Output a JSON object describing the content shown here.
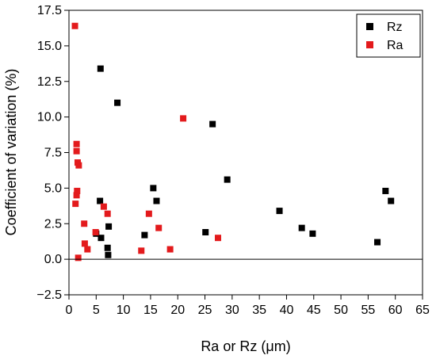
{
  "chart_data": {
    "type": "scatter",
    "xlabel": "Ra or Rz (μm)",
    "ylabel": "Coefficient of variation (%)",
    "xlim": [
      0,
      65
    ],
    "ylim": [
      -2.5,
      17.5
    ],
    "xticks": [
      0,
      5,
      10,
      15,
      20,
      25,
      30,
      35,
      40,
      45,
      50,
      55,
      60,
      65
    ],
    "yticks": [
      -2.5,
      0.0,
      2.5,
      5.0,
      7.5,
      10.0,
      12.5,
      15.0,
      17.5
    ],
    "ytick_labels": [
      "−2.5",
      "0.0",
      "2.5",
      "5.0",
      "7.5",
      "10.0",
      "12.5",
      "15.0",
      "17.5"
    ],
    "zero_line": true,
    "grid": false,
    "legend_position": "top-right",
    "series": [
      {
        "name": "Rz",
        "color": "#000000",
        "marker": "square",
        "points": [
          [
            5.8,
            13.4
          ],
          [
            8.9,
            11.0
          ],
          [
            26.4,
            9.5
          ],
          [
            29.1,
            5.6
          ],
          [
            15.5,
            5.0
          ],
          [
            5.7,
            4.1
          ],
          [
            16.1,
            4.1
          ],
          [
            58.2,
            4.8
          ],
          [
            59.2,
            4.1
          ],
          [
            38.7,
            3.4
          ],
          [
            42.8,
            2.2
          ],
          [
            44.8,
            1.8
          ],
          [
            56.7,
            1.2
          ],
          [
            7.3,
            2.3
          ],
          [
            13.9,
            1.7
          ],
          [
            25.1,
            1.9
          ],
          [
            5.0,
            1.8
          ],
          [
            5.9,
            1.5
          ],
          [
            7.1,
            0.8
          ],
          [
            7.2,
            0.3
          ]
        ]
      },
      {
        "name": "Ra",
        "color": "#e31a1c",
        "marker": "square",
        "points": [
          [
            1.1,
            16.4
          ],
          [
            1.4,
            8.1
          ],
          [
            1.4,
            7.6
          ],
          [
            1.6,
            6.8
          ],
          [
            1.8,
            6.6
          ],
          [
            1.5,
            4.8
          ],
          [
            1.4,
            4.5
          ],
          [
            1.2,
            3.9
          ],
          [
            21.0,
            9.9
          ],
          [
            6.4,
            3.7
          ],
          [
            7.1,
            3.2
          ],
          [
            14.7,
            3.2
          ],
          [
            16.5,
            2.2
          ],
          [
            2.8,
            2.5
          ],
          [
            4.9,
            1.9
          ],
          [
            27.4,
            1.5
          ],
          [
            2.9,
            1.1
          ],
          [
            3.4,
            0.7
          ],
          [
            13.3,
            0.6
          ],
          [
            18.6,
            0.7
          ],
          [
            1.7,
            0.1
          ]
        ]
      }
    ]
  }
}
